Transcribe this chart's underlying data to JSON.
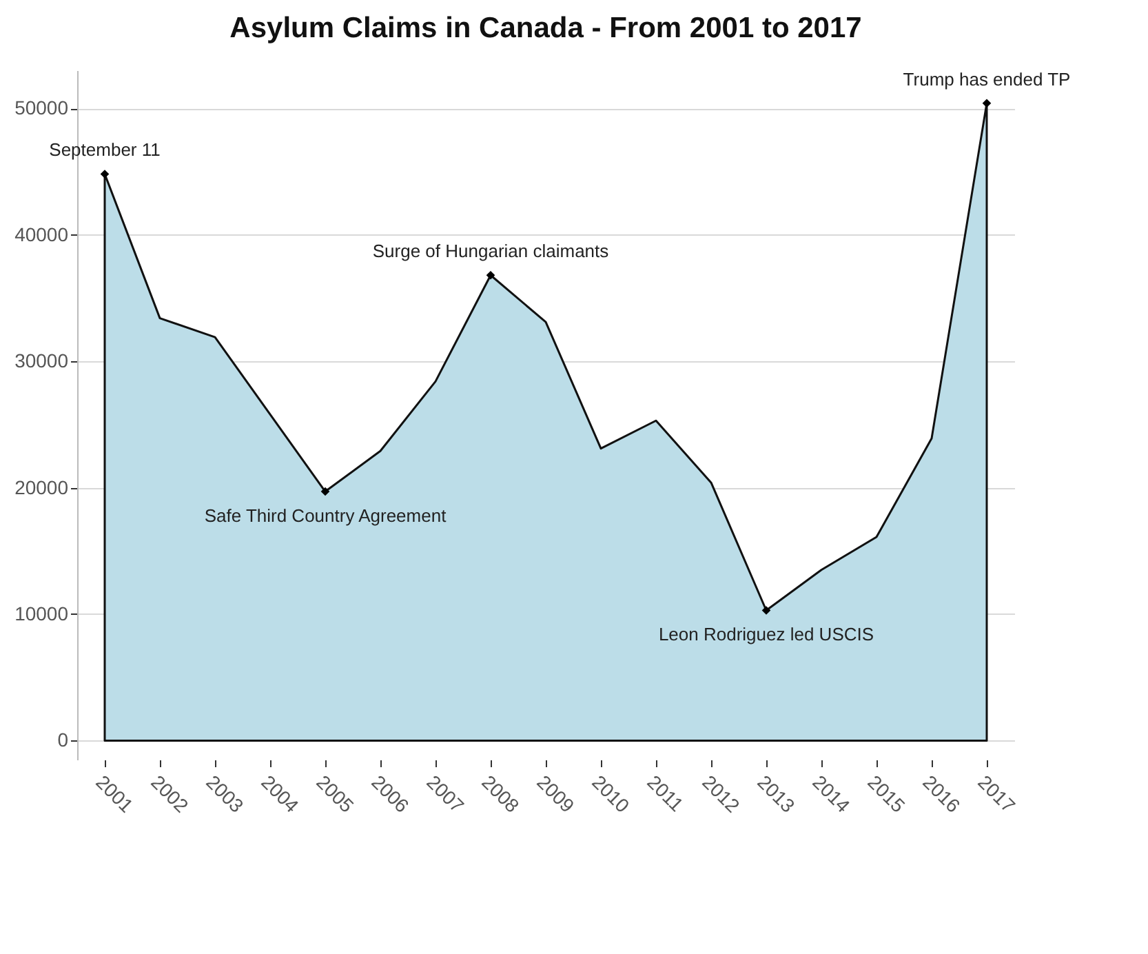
{
  "chart_data": {
    "type": "area",
    "title": "Asylum Claims in Canada - From 2001 to 2017",
    "categories": [
      "2001",
      "2002",
      "2003",
      "2004",
      "2005",
      "2006",
      "2007",
      "2008",
      "2009",
      "2010",
      "2011",
      "2012",
      "2013",
      "2014",
      "2015",
      "2016",
      "2017"
    ],
    "series": [
      {
        "color": "#bcdde8",
        "values": [
          44800,
          33400,
          31900,
          25800,
          19700,
          22900,
          28400,
          36800,
          33100,
          23100,
          25300,
          20400,
          10300,
          13500,
          16100,
          23900,
          50400
        ]
      }
    ],
    "ylim": [
      -1500,
      53000
    ],
    "yticks": [
      0,
      10000,
      20000,
      30000,
      40000,
      50000
    ],
    "grid": "y",
    "annotations": [
      {
        "text": "September 11",
        "x": "2001",
        "y": 44800
      },
      {
        "text": "Safe Third Country Agreement",
        "x": "2005",
        "y": 19700
      },
      {
        "text": "Surge of Hungarian claimants",
        "x": "2008",
        "y": 36800
      },
      {
        "text": "Leon Rodriguez led USCIS",
        "x": "2013",
        "y": 10300
      },
      {
        "text": "Trump has ended TP",
        "x": "2017",
        "y": 50400
      }
    ]
  }
}
